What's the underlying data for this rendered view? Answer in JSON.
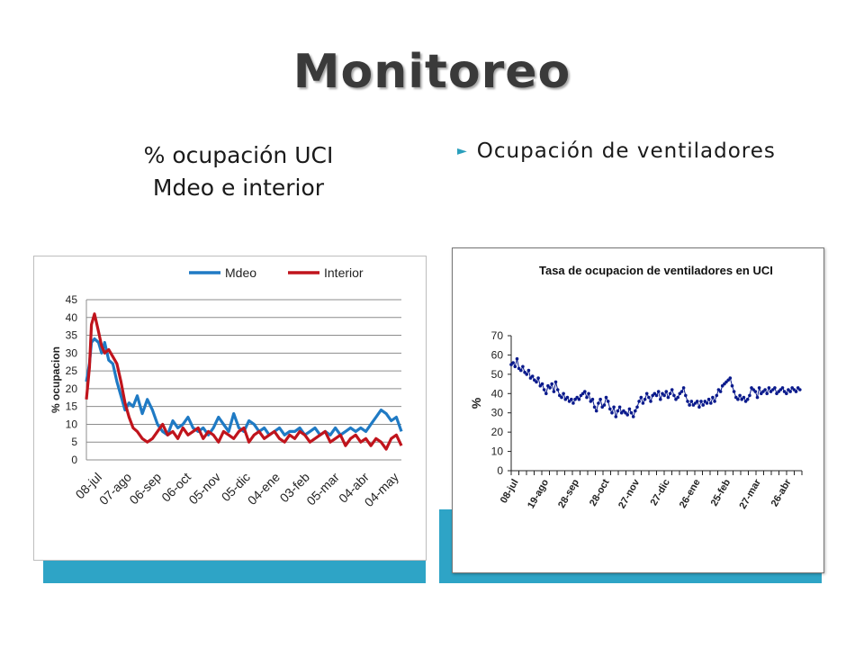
{
  "slide": {
    "title": "Monitoreo",
    "left_heading_line1": "% ocupación UCI",
    "left_heading_line2": "Mdeo e interior",
    "right_bullet": "Ocupación de ventiladores",
    "accent_color": "#2ea4c6"
  },
  "chart_data": [
    {
      "type": "line",
      "title": "",
      "xlabel": "",
      "ylabel": "% ocupacion",
      "ylim": [
        0,
        45
      ],
      "yticks": [
        "0",
        "5",
        "10",
        "15",
        "20",
        "25",
        "30",
        "35",
        "40",
        "45"
      ],
      "xticks": [
        "08-jul",
        "07-ago",
        "06-sep",
        "06-oct",
        "05-nov",
        "05-dic",
        "04-ene",
        "03-feb",
        "05-mar",
        "04-abr",
        "04-may"
      ],
      "grid": true,
      "legend_position": "top",
      "series": [
        {
          "name": "Mdeo",
          "color": "#1f7ac4",
          "x": [
            0,
            3,
            5,
            8,
            12,
            15,
            18,
            22,
            26,
            30,
            34,
            38,
            42,
            46,
            50,
            55,
            60,
            65,
            70,
            75,
            80,
            85,
            90,
            95,
            100,
            105,
            110,
            115,
            120,
            125,
            130,
            135,
            140,
            145,
            150,
            155,
            160,
            165,
            170,
            175,
            180,
            185,
            190,
            195,
            200,
            205,
            210,
            215,
            220,
            225,
            230,
            235,
            240,
            245,
            250,
            255,
            260,
            265,
            270,
            275,
            280,
            285,
            290,
            295,
            300,
            305,
            310
          ],
          "y": [
            22,
            27,
            33,
            34,
            33,
            30,
            33,
            28,
            27,
            22,
            18,
            14,
            16,
            15,
            18,
            13,
            17,
            14,
            10,
            8,
            7,
            11,
            9,
            10,
            12,
            9,
            8,
            9,
            7,
            9,
            12,
            10,
            8,
            13,
            9,
            8,
            11,
            10,
            8,
            9,
            7,
            8,
            9,
            7,
            8,
            8,
            9,
            7,
            8,
            9,
            7,
            8,
            7,
            9,
            7,
            8,
            9,
            8,
            9,
            8,
            10,
            12,
            14,
            13,
            11,
            12,
            8
          ]
        },
        {
          "name": "Interior",
          "color": "#c0141c",
          "x": [
            0,
            3,
            5,
            8,
            12,
            15,
            18,
            22,
            26,
            30,
            34,
            38,
            42,
            46,
            50,
            55,
            60,
            65,
            70,
            75,
            80,
            85,
            90,
            95,
            100,
            105,
            110,
            115,
            120,
            125,
            130,
            135,
            140,
            145,
            150,
            155,
            160,
            165,
            170,
            175,
            180,
            185,
            190,
            195,
            200,
            205,
            210,
            215,
            220,
            225,
            230,
            235,
            240,
            245,
            250,
            255,
            260,
            265,
            270,
            275,
            280,
            285,
            290,
            295,
            300,
            305,
            310
          ],
          "y": [
            17,
            26,
            38,
            41,
            36,
            32,
            30,
            31,
            29,
            27,
            22,
            16,
            12,
            9,
            8,
            6,
            5,
            6,
            8,
            10,
            7,
            8,
            6,
            9,
            7,
            8,
            9,
            6,
            8,
            7,
            5,
            8,
            7,
            6,
            8,
            9,
            5,
            7,
            8,
            6,
            7,
            8,
            6,
            5,
            7,
            6,
            8,
            7,
            5,
            6,
            7,
            8,
            5,
            6,
            7,
            4,
            6,
            7,
            5,
            6,
            4,
            6,
            5,
            3,
            6,
            7,
            4
          ]
        }
      ]
    },
    {
      "type": "line",
      "title": "Tasa de ocupacion de ventiladores en UCI",
      "xlabel": "",
      "ylabel": "%",
      "ylim": [
        0,
        70
      ],
      "yticks": [
        "0",
        "10",
        "20",
        "30",
        "40",
        "50",
        "60",
        "70"
      ],
      "xticks": [
        "08-jul",
        "19-ago",
        "28-sep",
        "28-oct",
        "27-nov",
        "27-dic",
        "26-ene",
        "25-feb",
        "27-mar",
        "26-abr"
      ],
      "grid": false,
      "series": [
        {
          "name": "",
          "color": "#0a1a8c",
          "x": [
            0,
            2,
            4,
            6,
            8,
            10,
            12,
            14,
            16,
            18,
            20,
            22,
            24,
            26,
            28,
            30,
            32,
            34,
            36,
            38,
            40,
            42,
            44,
            46,
            48,
            50,
            52,
            54,
            56,
            58,
            60,
            62,
            64,
            66,
            68,
            70,
            72,
            74,
            76,
            78,
            80,
            82,
            84,
            86,
            88,
            90,
            92,
            94,
            96,
            98,
            100,
            102,
            104,
            106,
            108,
            110,
            112,
            114,
            116,
            118,
            120,
            122,
            124,
            126,
            128,
            130,
            132,
            134,
            136,
            138,
            140,
            142,
            144,
            146,
            148,
            150,
            152,
            154,
            156,
            158,
            160,
            162,
            164,
            166,
            168,
            170,
            172,
            174,
            176,
            178,
            180,
            182,
            184,
            186,
            188,
            190,
            192,
            194,
            196,
            198,
            200,
            202,
            204,
            206,
            208,
            210,
            212,
            214,
            216,
            218,
            220,
            222,
            224,
            226,
            228,
            230,
            232,
            234,
            236,
            238,
            240,
            242,
            244,
            246,
            248,
            250,
            252,
            254,
            256,
            258,
            260,
            262,
            264,
            266,
            268,
            270,
            272,
            274,
            276,
            278,
            280,
            282,
            284,
            286,
            288,
            290,
            292,
            294,
            296,
            298
          ],
          "y": [
            55,
            56,
            54,
            58,
            53,
            52,
            54,
            51,
            50,
            52,
            48,
            49,
            47,
            46,
            48,
            44,
            45,
            42,
            40,
            44,
            43,
            45,
            41,
            46,
            42,
            39,
            38,
            40,
            37,
            38,
            36,
            37,
            35,
            37,
            38,
            37,
            39,
            40,
            41,
            38,
            40,
            36,
            37,
            33,
            31,
            35,
            37,
            33,
            34,
            38,
            36,
            32,
            30,
            33,
            28,
            31,
            33,
            30,
            31,
            30,
            29,
            32,
            30,
            28,
            31,
            33,
            36,
            38,
            35,
            37,
            40,
            38,
            36,
            39,
            40,
            39,
            41,
            37,
            40,
            39,
            41,
            38,
            40,
            42,
            39,
            37,
            38,
            40,
            41,
            43,
            39,
            36,
            34,
            36,
            34,
            35,
            36,
            33,
            36,
            34,
            36,
            35,
            37,
            35,
            38,
            36,
            39,
            42,
            41,
            44,
            45,
            46,
            47,
            48,
            44,
            41,
            38,
            37,
            39,
            37,
            38,
            36,
            37,
            39,
            43,
            42,
            41,
            38,
            43,
            40,
            41,
            42,
            40,
            43,
            41,
            42,
            43,
            40,
            41,
            42,
            43,
            41,
            40,
            42,
            41,
            43,
            42,
            41,
            43,
            42
          ]
        }
      ]
    }
  ]
}
